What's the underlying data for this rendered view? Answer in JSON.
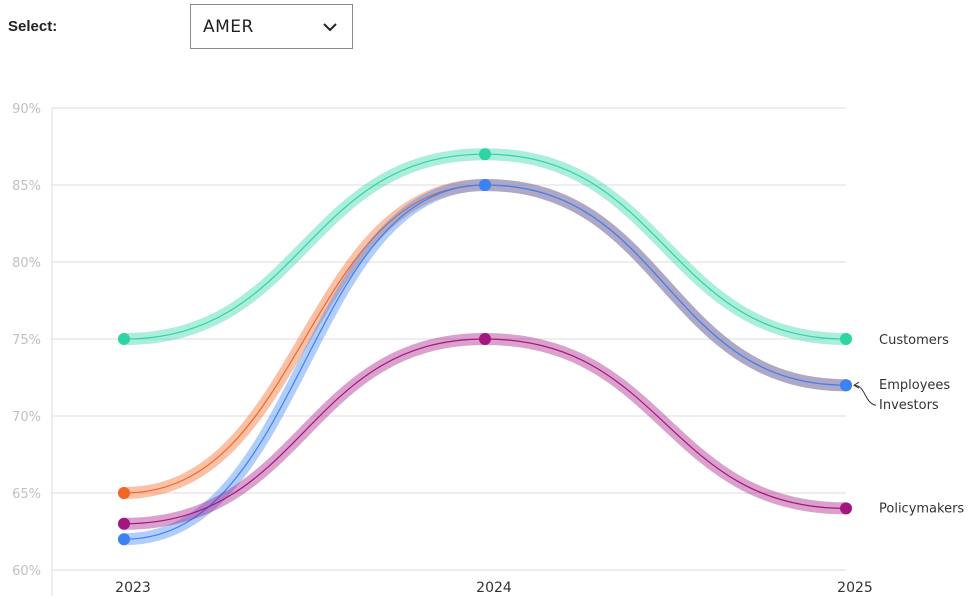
{
  "controls": {
    "select_label": "Select:",
    "select_value": "AMER",
    "chevron_icon": "chevron-down-icon"
  },
  "chart_data": {
    "type": "line",
    "x": [
      "2023",
      "2024",
      "2025"
    ],
    "ylim": [
      60,
      90
    ],
    "y_ticks": [
      60,
      65,
      70,
      75,
      80,
      85,
      90
    ],
    "y_unit": "%",
    "grid": true,
    "legend": "end-of-line labels",
    "series": [
      {
        "name": "Customers",
        "values": [
          75,
          87,
          75
        ],
        "color": "#2dd4a4"
      },
      {
        "name": "Investors",
        "values": [
          65,
          85,
          72
        ],
        "color": "#f26522"
      },
      {
        "name": "Employees",
        "values": [
          62,
          85,
          72
        ],
        "color": "#3b82f6"
      },
      {
        "name": "Policymakers",
        "values": [
          63,
          75,
          64
        ],
        "color": "#a3157f"
      }
    ]
  }
}
